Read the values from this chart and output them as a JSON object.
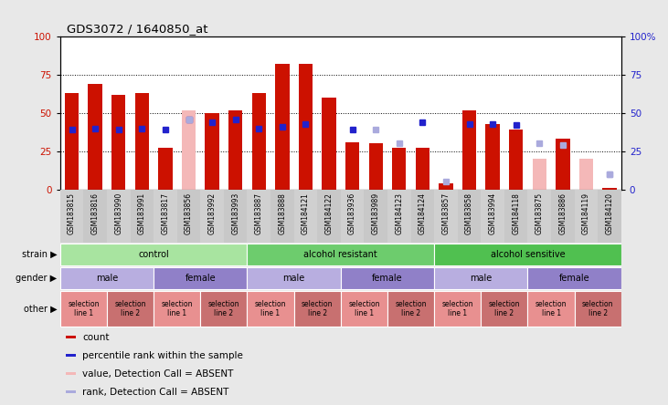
{
  "title": "GDS3072 / 1640850_at",
  "samples": [
    "GSM183815",
    "GSM183816",
    "GSM183990",
    "GSM183991",
    "GSM183817",
    "GSM183856",
    "GSM183992",
    "GSM183993",
    "GSM183887",
    "GSM183888",
    "GSM184121",
    "GSM184122",
    "GSM183936",
    "GSM183989",
    "GSM184123",
    "GSM184124",
    "GSM183857",
    "GSM183858",
    "GSM183994",
    "GSM184118",
    "GSM183875",
    "GSM183886",
    "GSM184119",
    "GSM184120"
  ],
  "count_values": [
    63,
    69,
    62,
    63,
    27,
    0,
    50,
    52,
    63,
    82,
    82,
    60,
    31,
    30,
    27,
    27,
    4,
    52,
    43,
    39,
    0,
    33,
    0,
    1
  ],
  "rank_values": [
    39,
    40,
    39,
    40,
    39,
    46,
    44,
    46,
    40,
    41,
    43,
    0,
    39,
    0,
    0,
    44,
    0,
    43,
    43,
    42,
    0,
    0,
    0,
    0
  ],
  "count_absent": [
    0,
    0,
    0,
    0,
    0,
    52,
    0,
    0,
    0,
    0,
    0,
    0,
    0,
    0,
    0,
    0,
    0,
    0,
    0,
    0,
    20,
    0,
    20,
    0
  ],
  "rank_absent": [
    0,
    0,
    0,
    0,
    0,
    46,
    0,
    0,
    0,
    0,
    0,
    0,
    0,
    0,
    0,
    0,
    5,
    0,
    0,
    0,
    30,
    0,
    0,
    10
  ],
  "rank_absent2": [
    0,
    0,
    0,
    0,
    0,
    0,
    0,
    0,
    0,
    0,
    0,
    0,
    0,
    39,
    30,
    0,
    0,
    0,
    0,
    0,
    0,
    29,
    0,
    10
  ],
  "strain_groups": [
    {
      "label": "control",
      "start": 0,
      "end": 8,
      "color": "#a8e4a0"
    },
    {
      "label": "alcohol resistant",
      "start": 8,
      "end": 16,
      "color": "#6dcc6d"
    },
    {
      "label": "alcohol sensitive",
      "start": 16,
      "end": 24,
      "color": "#50c050"
    }
  ],
  "gender_groups": [
    {
      "label": "male",
      "start": 0,
      "end": 4,
      "color": "#b8aee0"
    },
    {
      "label": "female",
      "start": 4,
      "end": 8,
      "color": "#9080c8"
    },
    {
      "label": "male",
      "start": 8,
      "end": 12,
      "color": "#b8aee0"
    },
    {
      "label": "female",
      "start": 12,
      "end": 16,
      "color": "#9080c8"
    },
    {
      "label": "male",
      "start": 16,
      "end": 20,
      "color": "#b8aee0"
    },
    {
      "label": "female",
      "start": 20,
      "end": 24,
      "color": "#9080c8"
    }
  ],
  "other_groups": [
    {
      "label": "selection\nline 1",
      "start": 0,
      "end": 2,
      "color": "#e89090"
    },
    {
      "label": "selection\nline 2",
      "start": 2,
      "end": 4,
      "color": "#c87070"
    },
    {
      "label": "selection\nline 1",
      "start": 4,
      "end": 6,
      "color": "#e89090"
    },
    {
      "label": "selection\nline 2",
      "start": 6,
      "end": 8,
      "color": "#c87070"
    },
    {
      "label": "selection\nline 1",
      "start": 8,
      "end": 10,
      "color": "#e89090"
    },
    {
      "label": "selection\nline 2",
      "start": 10,
      "end": 12,
      "color": "#c87070"
    },
    {
      "label": "selection\nline 1",
      "start": 12,
      "end": 14,
      "color": "#e89090"
    },
    {
      "label": "selection\nline 2",
      "start": 14,
      "end": 16,
      "color": "#c87070"
    },
    {
      "label": "selection\nline 1",
      "start": 16,
      "end": 18,
      "color": "#e89090"
    },
    {
      "label": "selection\nline 2",
      "start": 18,
      "end": 20,
      "color": "#c87070"
    },
    {
      "label": "selection\nline 1",
      "start": 20,
      "end": 22,
      "color": "#e89090"
    },
    {
      "label": "selection\nline 2",
      "start": 22,
      "end": 24,
      "color": "#c87070"
    }
  ],
  "bar_color": "#cc1100",
  "rank_color": "#2222cc",
  "absent_bar_color": "#f4b8b8",
  "absent_rank_color": "#aaaadd",
  "background_color": "#e8e8e8",
  "plot_bg": "#ffffff"
}
